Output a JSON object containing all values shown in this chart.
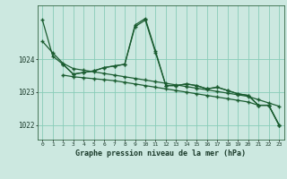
{
  "background_color": "#cce8e0",
  "grid_color": "#88ccb8",
  "line_color": "#1a5c30",
  "ylim": [
    1021.55,
    1025.65
  ],
  "xlim": [
    -0.5,
    23.5
  ],
  "yticks": [
    1022,
    1023,
    1024
  ],
  "xticks": [
    0,
    1,
    2,
    3,
    4,
    5,
    6,
    7,
    8,
    9,
    10,
    11,
    12,
    13,
    14,
    15,
    16,
    17,
    18,
    19,
    20,
    21,
    22,
    23
  ],
  "title": "Graphe pression niveau de la mer (hPa)",
  "line1_x": [
    0,
    1,
    2,
    3,
    4,
    5,
    6,
    7,
    8,
    9,
    10,
    11,
    12,
    13,
    14,
    15,
    16,
    17,
    18,
    19,
    20,
    21,
    22,
    23
  ],
  "line1_y": [
    1025.2,
    1024.1,
    1023.85,
    1023.55,
    1023.6,
    1023.65,
    1023.75,
    1023.8,
    1023.85,
    1025.05,
    1025.25,
    1024.25,
    1023.2,
    1023.2,
    1023.25,
    1023.2,
    1023.1,
    1023.15,
    1023.05,
    1022.95,
    1022.9,
    1022.6,
    1022.6,
    1022.0
  ],
  "line2_x": [
    2,
    3,
    4,
    5,
    6,
    7,
    8,
    9,
    10,
    11,
    12,
    13,
    14,
    15,
    16,
    17,
    18,
    19,
    20,
    21,
    22,
    23
  ],
  "line2_y": [
    1023.85,
    1023.55,
    1023.6,
    1023.65,
    1023.75,
    1023.8,
    1023.85,
    1025.0,
    1025.2,
    1024.2,
    1023.2,
    1023.2,
    1023.25,
    1023.2,
    1023.1,
    1023.15,
    1023.05,
    1022.95,
    1022.9,
    1022.6,
    1022.6,
    1022.0
  ],
  "line3_x": [
    0,
    1,
    2,
    3,
    4,
    5,
    6,
    7,
    8,
    9,
    10,
    11,
    12,
    13,
    14,
    15,
    16,
    17,
    18,
    19,
    20,
    21,
    22,
    23
  ],
  "line3_y": [
    1024.55,
    1024.2,
    1023.88,
    1023.72,
    1023.67,
    1023.62,
    1023.57,
    1023.52,
    1023.47,
    1023.42,
    1023.37,
    1023.32,
    1023.27,
    1023.22,
    1023.17,
    1023.12,
    1023.07,
    1023.02,
    1022.97,
    1022.92,
    1022.87,
    1022.77,
    1022.67,
    1022.57
  ],
  "line4_x": [
    2,
    3,
    4,
    5,
    6,
    7,
    8,
    9,
    10,
    11,
    12,
    13,
    14,
    15,
    16,
    17,
    18,
    19,
    20,
    21,
    22,
    23
  ],
  "line4_y": [
    1023.52,
    1023.47,
    1023.44,
    1023.41,
    1023.38,
    1023.35,
    1023.3,
    1023.25,
    1023.2,
    1023.15,
    1023.1,
    1023.05,
    1023.0,
    1022.95,
    1022.9,
    1022.85,
    1022.8,
    1022.75,
    1022.7,
    1022.6,
    1022.6,
    1022.0
  ]
}
